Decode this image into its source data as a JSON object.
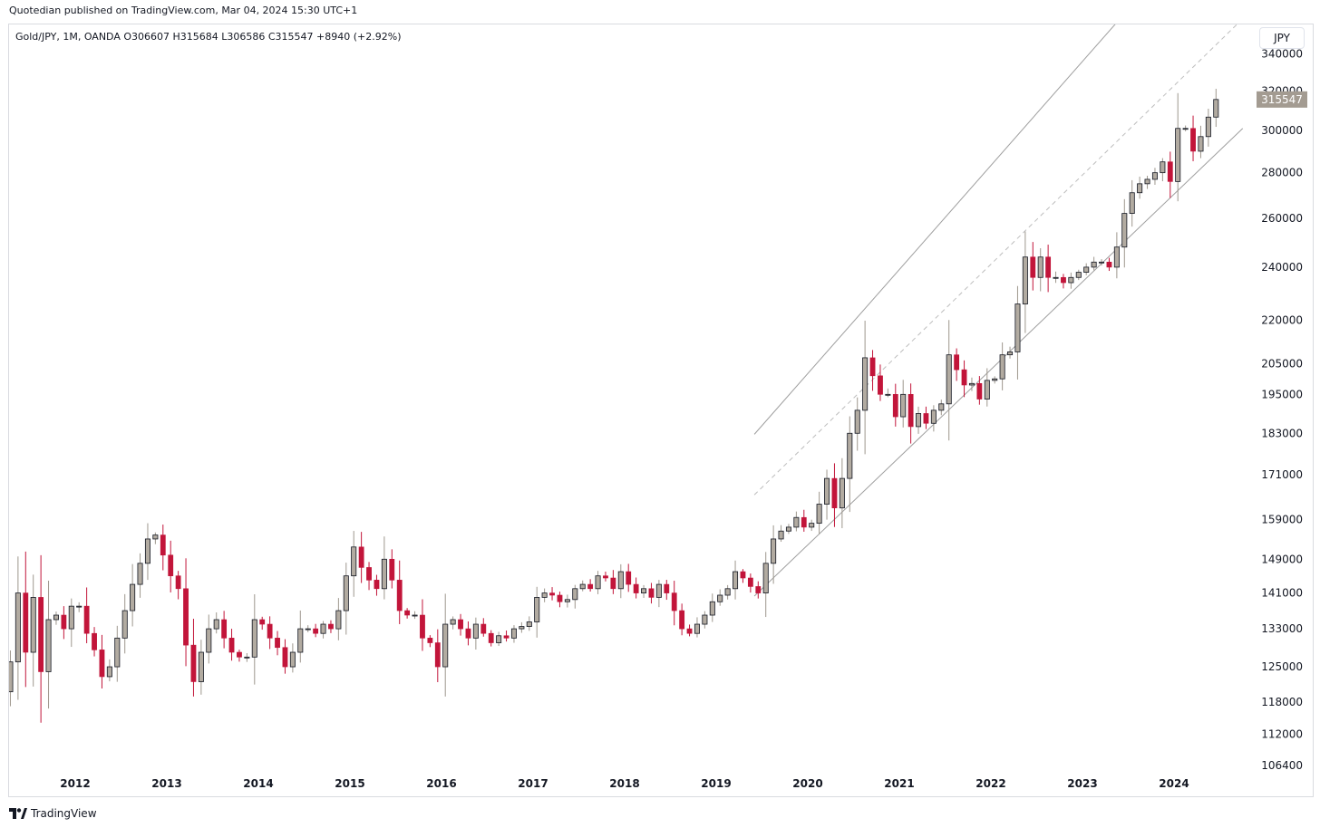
{
  "header": {
    "published_by": "Quotedian published on TradingView.com, Mar 04, 2024 15:30 UTC+1"
  },
  "legend": {
    "text": "Gold/JPY, 1M, OANDA  O306607  H315684  L306586  C315547  +8940 (+2.92%)"
  },
  "currency_button": {
    "label": "JPY"
  },
  "footer": {
    "brand": "TradingView"
  },
  "colors": {
    "up": "#b2aba1",
    "down": "#c2153a",
    "wick_up": "#9e978d",
    "wick_down": "#c2153a",
    "channel": "#9e9e9e",
    "price_tag": "#a39b91"
  },
  "chart_data": {
    "type": "candlestick",
    "symbol": "Gold/JPY",
    "interval": "1M",
    "exchange": "OANDA",
    "y_scale": "log",
    "ylim": [
      101000,
      352000
    ],
    "y_ticks": [
      {
        "value": 340000,
        "label": "340000"
      },
      {
        "value": 320000,
        "label": "320000"
      },
      {
        "value": 300000,
        "label": "300000"
      },
      {
        "value": 280000,
        "label": "280000"
      },
      {
        "value": 260000,
        "label": "260000"
      },
      {
        "value": 240000,
        "label": "240000"
      },
      {
        "value": 220000,
        "label": "220000"
      },
      {
        "value": 205000,
        "label": "205000"
      },
      {
        "value": 195000,
        "label": "195000"
      },
      {
        "value": 183000,
        "label": "183000"
      },
      {
        "value": 171000,
        "label": "171000"
      },
      {
        "value": 159000,
        "label": "159000"
      },
      {
        "value": 149000,
        "label": "149000"
      },
      {
        "value": 141000,
        "label": "141000"
      },
      {
        "value": 133000,
        "label": "133000"
      },
      {
        "value": 125000,
        "label": "125000"
      },
      {
        "value": 118000,
        "label": "118000"
      },
      {
        "value": 112000,
        "label": "112000"
      },
      {
        "value": 106400,
        "label": "106400"
      }
    ],
    "x_ticks": [
      "2012",
      "2013",
      "2014",
      "2015",
      "2016",
      "2017",
      "2018",
      "2019",
      "2020",
      "2021",
      "2022",
      "2023",
      "2024"
    ],
    "first_candle": "2011-01",
    "last_price": {
      "value": 315547,
      "label": "315547"
    },
    "closes": [
      127500,
      123000,
      120000,
      126000,
      141000,
      128000,
      140000,
      124000,
      135000,
      136000,
      133000,
      138000,
      138000,
      132000,
      128500,
      123000,
      125000,
      131000,
      137000,
      143000,
      148000,
      154000,
      155000,
      150000,
      145000,
      142000,
      129500,
      122000,
      128000,
      133000,
      135000,
      131000,
      128000,
      127000,
      127000,
      135000,
      134000,
      131000,
      129000,
      125000,
      128000,
      133000,
      133000,
      132000,
      134000,
      133000,
      137000,
      145000,
      152000,
      147000,
      144000,
      142000,
      149000,
      144000,
      137000,
      136000,
      136000,
      131000,
      130000,
      125000,
      134000,
      135000,
      133000,
      131000,
      134000,
      132000,
      130000,
      131500,
      131000,
      133000,
      133500,
      134500,
      140000,
      141000,
      140500,
      139000,
      139500,
      142000,
      143000,
      142000,
      145000,
      144500,
      142000,
      146000,
      143000,
      141000,
      142000,
      140000,
      143000,
      141000,
      137000,
      133000,
      132000,
      134000,
      136000,
      139000,
      140500,
      142000,
      146000,
      144500,
      142500,
      141000,
      148000,
      154000,
      156000,
      157000,
      159500,
      157000,
      158000,
      163000,
      170000,
      162000,
      170000,
      183000,
      190000,
      207000,
      201000,
      195000,
      195000,
      188000,
      195000,
      185000,
      189000,
      186000,
      190000,
      192000,
      208000,
      203000,
      198000,
      198500,
      193500,
      199500,
      200000,
      208000,
      209000,
      226000,
      244000,
      236000,
      244000,
      236000,
      236000,
      234000,
      236000,
      238000,
      240000,
      242000,
      242000,
      240000,
      248000,
      262000,
      271000,
      275000,
      277000,
      280000,
      285000,
      276000,
      301000,
      301000,
      290000,
      297000,
      306607,
      315547
    ],
    "opens": [
      130000,
      127500,
      123000,
      120000,
      126000,
      141000,
      128000,
      140000,
      124000,
      135000,
      136000,
      133000,
      138000,
      138000,
      132000,
      128500,
      123000,
      125000,
      131000,
      137000,
      143000,
      148000,
      154000,
      155000,
      150000,
      145000,
      142000,
      129500,
      122000,
      128000,
      133000,
      135000,
      131000,
      128000,
      127000,
      127000,
      135000,
      134000,
      131000,
      129000,
      125000,
      128000,
      133000,
      133000,
      132000,
      134000,
      133000,
      137000,
      145000,
      152000,
      147000,
      144000,
      142000,
      149000,
      144000,
      137000,
      136000,
      136000,
      131000,
      130000,
      125000,
      134000,
      135000,
      133000,
      131000,
      134000,
      132000,
      130000,
      131500,
      131000,
      133000,
      133500,
      134500,
      140000,
      141000,
      140500,
      139000,
      139500,
      142000,
      143000,
      142000,
      145000,
      144500,
      142000,
      146000,
      143000,
      141000,
      142000,
      140000,
      143000,
      141000,
      137000,
      133000,
      132000,
      134000,
      136000,
      139000,
      140500,
      142000,
      146000,
      144500,
      142500,
      141000,
      148000,
      154000,
      156000,
      157000,
      159500,
      157000,
      158000,
      163000,
      170000,
      162000,
      170000,
      183000,
      190000,
      207000,
      201000,
      195000,
      195000,
      188000,
      195000,
      185000,
      189000,
      186000,
      190000,
      192000,
      208000,
      203000,
      198000,
      198500,
      193500,
      199500,
      200000,
      208000,
      209000,
      226000,
      244000,
      236000,
      244000,
      236000,
      236000,
      234000,
      236000,
      238000,
      240000,
      242000,
      242000,
      240000,
      248000,
      262000,
      271000,
      275000,
      277000,
      280000,
      285000,
      276000,
      301000,
      301000,
      290000,
      297000,
      306607
    ],
    "channel": {
      "upper": {
        "from": [
          "2019-06",
          182700
        ],
        "to": [
          "2024-10",
          452000
        ]
      },
      "middle": {
        "from": [
          "2019-06",
          165500
        ],
        "to": [
          "2024-10",
          360000
        ]
      },
      "lower": {
        "from": [
          "2019-06",
          140300
        ],
        "to": [
          "2024-10",
          301000
        ]
      }
    }
  }
}
